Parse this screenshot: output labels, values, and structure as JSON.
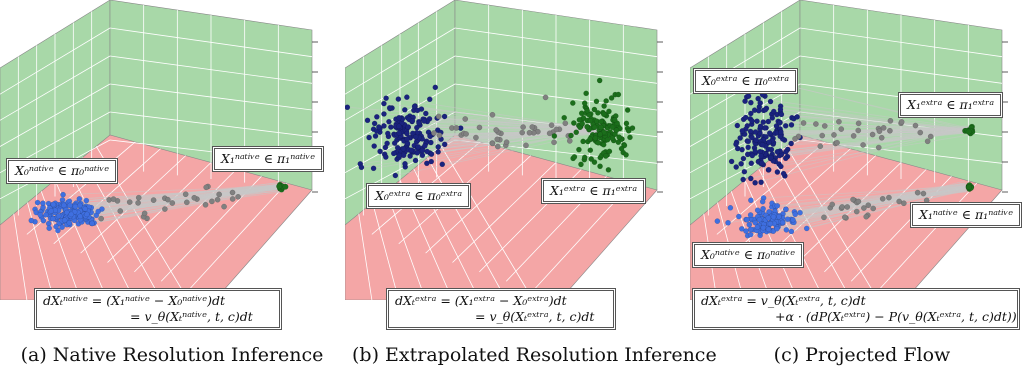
{
  "panels": [
    {
      "caption": "(a) Native Resolution Inference",
      "labels": [
        {
          "text": "X₀ⁿᵃᵗⁱᵛᵉ ∈ π₀ⁿᵃᵗⁱᵛᵉ"
        },
        {
          "text": "X₁ⁿᵃᵗⁱᵛᵉ ∈ π₁ⁿᵃᵗⁱᵛᵉ"
        }
      ],
      "equation": [
        "dXₜⁿᵃᵗⁱᵛᵉ = (X₁ⁿᵃᵗⁱᵛᵉ − X₀ⁿᵃᵗⁱᵛᵉ)dt",
        "= v_θ(Xₜⁿᵃᵗⁱᵛᵉ, t, c)dt"
      ]
    },
    {
      "caption": "(b) Extrapolated Resolution Inference",
      "labels": [
        {
          "text": "X₀ᵉˣᵗʳᵃ ∈ π₀ᵉˣᵗʳᵃ"
        },
        {
          "text": "X₁ᵉˣᵗʳᵃ ∈ π₁ᵉˣᵗʳᵃ"
        }
      ],
      "equation": [
        "dXₜᵉˣᵗʳᵃ = (X₁ᵉˣᵗʳᵃ − X₀ᵉˣᵗʳᵃ)dt",
        "= v_θ(Xₜᵉˣᵗʳᵃ, t, c)dt"
      ]
    },
    {
      "caption": "(c) Projected Flow",
      "labels": [
        {
          "text": "X₀ᵉˣᵗʳᵃ ∈ π₀ᵉˣᵗʳᵃ"
        },
        {
          "text": "X₁ᵉˣᵗʳᵃ ∈ π₁ᵉˣᵗʳᵃ"
        },
        {
          "text": "X₁ⁿᵃᵗⁱᵛᵉ ∈ π₁ⁿᵃᵗⁱᵛᵉ"
        },
        {
          "text": "X₀ⁿᵃᵗⁱᵛᵉ ∈ π₀ⁿᵃᵗⁱᵛᵉ"
        }
      ],
      "equation": [
        "dXₜᵉˣᵗʳᵃ = v_θ(Xₜᵉˣᵗʳᵃ, t, c)dt",
        "+α · (dP(Xₜᵉˣᵗʳᵃ) − P(v_θ(Xₜᵉˣᵗʳᵃ, t, c)dt))"
      ]
    }
  ],
  "colors": {
    "wall_green": "#a8d8a8",
    "floor_pink": "#f4a6a6",
    "grid_line": "#ffffff",
    "native_source": "#3f6fe0",
    "extra_source": "#1a237e",
    "target_green": "#1b6e1b",
    "intermediate_gray": "#808080",
    "trajectory": "#c8c8c8"
  }
}
